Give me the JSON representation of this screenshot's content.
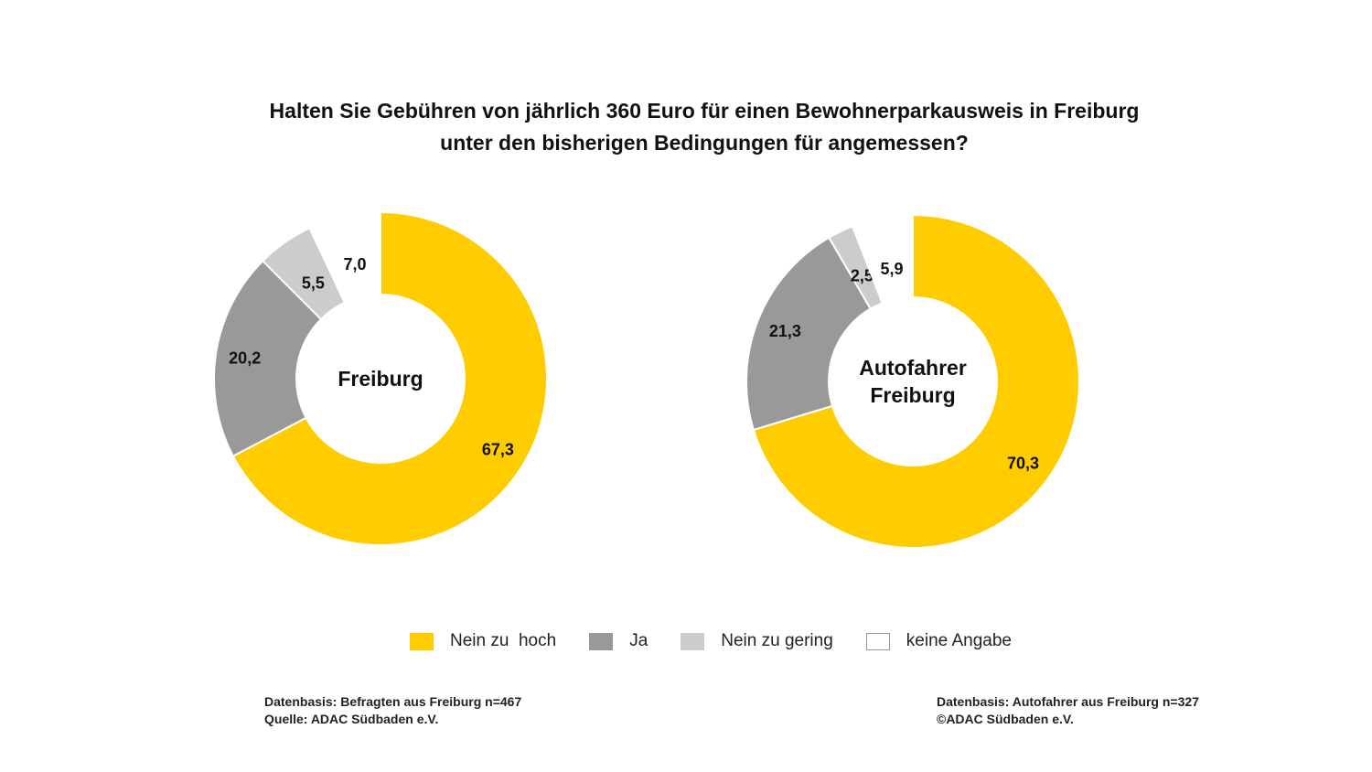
{
  "title": {
    "line1": "Halten Sie Gebühren von jährlich 360 Euro für einen Bewohnerparkausweis in Freiburg",
    "line2": "unter den bisherigen Bedingungen für angemessen?"
  },
  "colors": {
    "nein_zu_hoch": "#FFCC00",
    "ja": "#999999",
    "nein_zu_gering": "#CCCCCC",
    "keine_angabe": "#FFFFFF"
  },
  "chart_data": [
    {
      "type": "pie",
      "center_label": [
        "Freiburg"
      ],
      "slices": [
        {
          "label": "Nein zu hoch",
          "value": 67.3,
          "display": "67,3",
          "color": "#FFCC00"
        },
        {
          "label": "Ja",
          "value": 20.2,
          "display": "20,2",
          "color": "#999999"
        },
        {
          "label": "Nein zu gering",
          "value": 5.5,
          "display": "5,5",
          "color": "#CCCCCC"
        },
        {
          "label": "keine Angabe",
          "value": 7.0,
          "display": "7,0",
          "color": "#FFFFFF"
        }
      ]
    },
    {
      "type": "pie",
      "center_label": [
        "Autofahrer",
        "Freiburg"
      ],
      "slices": [
        {
          "label": "Nein zu hoch",
          "value": 70.3,
          "display": "70,3",
          "color": "#FFCC00"
        },
        {
          "label": "Ja",
          "value": 21.3,
          "display": "21,3",
          "color": "#999999"
        },
        {
          "label": "Nein zu gering",
          "value": 2.5,
          "display": "2,5",
          "color": "#CCCCCC"
        },
        {
          "label": "keine Angabe",
          "value": 5.9,
          "display": "5,9",
          "color": "#FFFFFF"
        }
      ]
    }
  ],
  "legend": [
    {
      "label": "Nein zu  hoch",
      "color": "#FFCC00"
    },
    {
      "label": "Ja",
      "color": "#999999"
    },
    {
      "label": "Nein zu gering",
      "color": "#CCCCCC"
    },
    {
      "label": "keine Angabe",
      "color": "#FFFFFF"
    }
  ],
  "footnotes": {
    "left_line1": "Datenbasis: Befragten aus  Freiburg n=467",
    "left_line2": "Quelle: ADAC Südbaden e.V.",
    "right_line1": "Datenbasis: Autofahrer aus Freiburg n=327",
    "right_line2": "©ADAC Südbaden e.V."
  }
}
